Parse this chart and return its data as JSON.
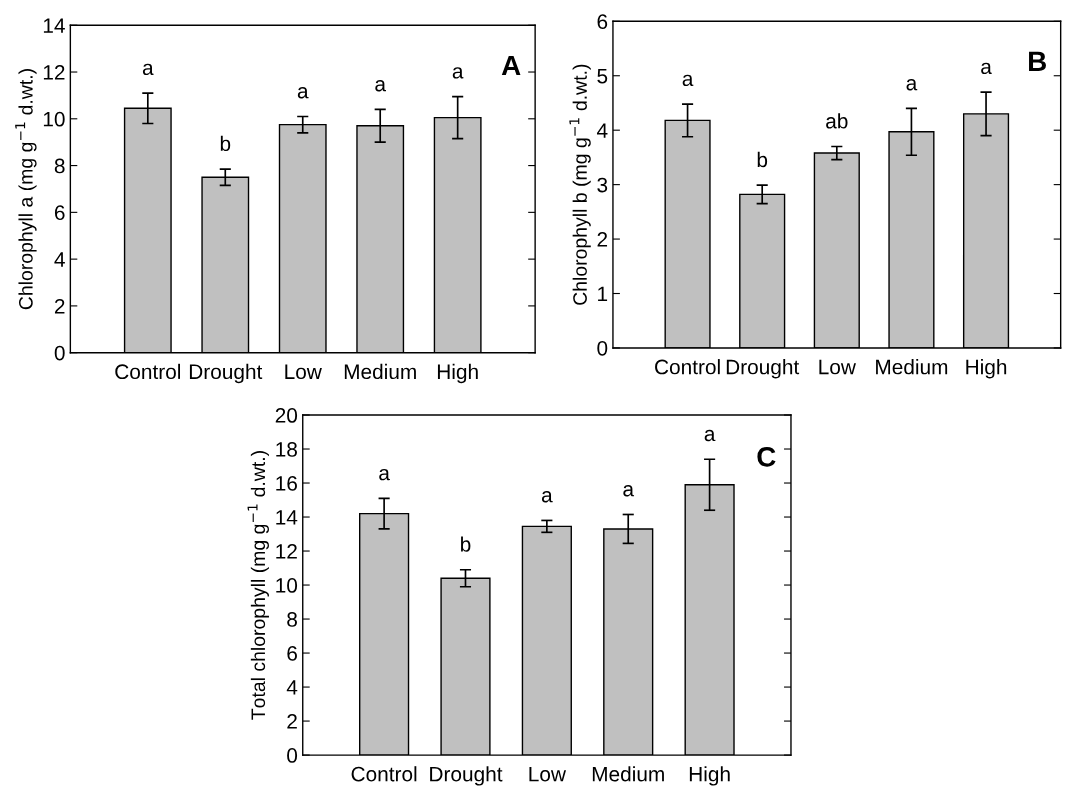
{
  "chart_data": [
    {
      "type": "bar",
      "categories": [
        "Control",
        "Drought",
        "Low",
        "Medium",
        "High"
      ],
      "values": [
        10.45,
        7.5,
        9.75,
        9.7,
        10.05
      ],
      "errors": [
        0.65,
        0.35,
        0.35,
        0.7,
        0.9
      ],
      "color": "#c0c0c0",
      "ylabel": "Chlorophyll a (mg g$^{−1}$ d.wt.)",
      "ylim": [
        0,
        14
      ],
      "yticks": [
        0,
        2,
        4,
        6,
        8,
        10,
        12,
        14
      ],
      "grid": false,
      "annotations": [
        "A",
        "a",
        "b",
        "a",
        "a",
        "a"
      ]
    },
    {
      "type": "bar",
      "categories": [
        "Control",
        "Drought",
        "Low",
        "Medium",
        "High"
      ],
      "values": [
        4.18,
        2.82,
        3.58,
        3.97,
        4.3
      ],
      "errors": [
        0.3,
        0.17,
        0.12,
        0.43,
        0.4
      ],
      "color": "#c0c0c0",
      "ylabel": "Chlorophyll b (mg g$^{−1}$ d.wt.)",
      "ylim": [
        0,
        6
      ],
      "yticks": [
        0,
        1,
        2,
        3,
        4,
        5,
        6
      ],
      "grid": false,
      "annotations": [
        "B",
        "a",
        "b",
        "ab",
        "a",
        "a"
      ]
    },
    {
      "type": "bar",
      "categories": [
        "Control",
        "Drought",
        "Low",
        "Medium",
        "High"
      ],
      "values": [
        14.2,
        10.4,
        13.45,
        13.3,
        15.9
      ],
      "errors": [
        0.9,
        0.5,
        0.35,
        0.85,
        1.5
      ],
      "color": "#c0c0c0",
      "ylabel": "Total chlorophyll (mg g$^{−1}$ d.wt.)",
      "ylim": [
        0,
        20
      ],
      "yticks": [
        0,
        2,
        4,
        6,
        8,
        10,
        12,
        14,
        16,
        18,
        20
      ],
      "grid": false,
      "annotations": [
        "C",
        "a",
        "b",
        "a",
        "a",
        "a"
      ]
    }
  ]
}
